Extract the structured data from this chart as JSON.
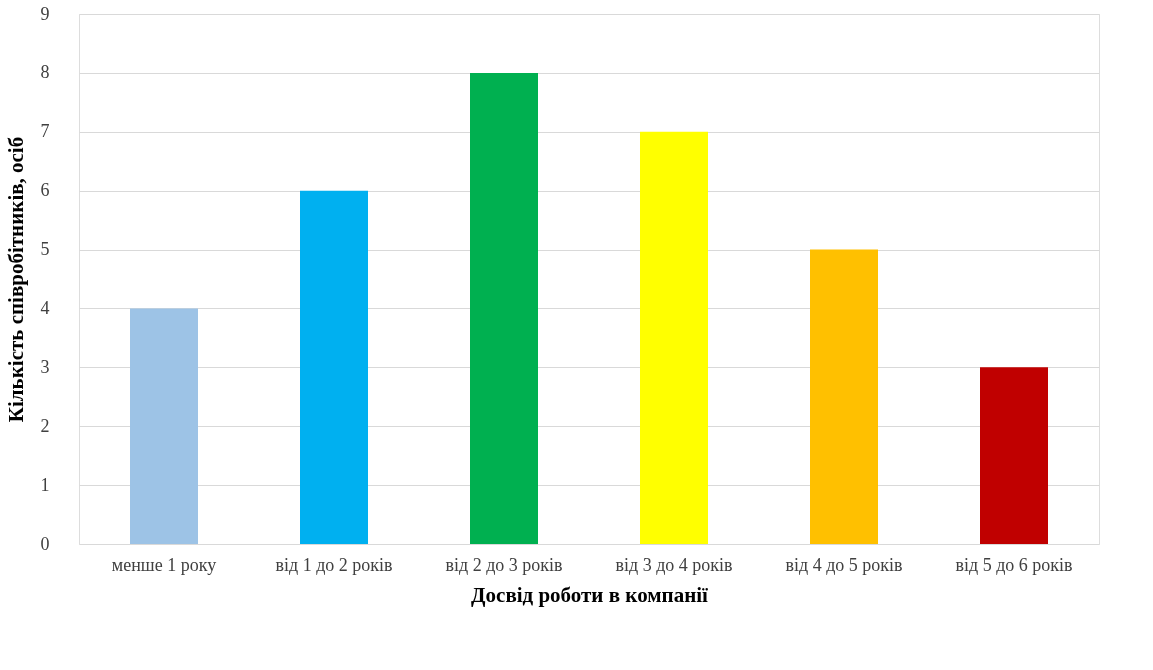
{
  "chart_data": {
    "type": "bar",
    "xlabel": "Досвід роботи в компанії",
    "ylabel": "Кількість співробітників, осіб",
    "categories": [
      "менше 1 року",
      "від 1 до 2 років",
      "від 2 до 3 років",
      "від 3 до 4 років",
      "від 4 до 5 років",
      "від 5 до 6 років"
    ],
    "values": [
      4,
      6,
      8,
      7,
      5,
      3
    ],
    "colors": [
      "#9dc3e6",
      "#00b0f0",
      "#00b050",
      "#ffff00",
      "#ffc000",
      "#c00000"
    ],
    "ylim": [
      0,
      9
    ],
    "yticks": [
      0,
      1,
      2,
      3,
      4,
      5,
      6,
      7,
      8,
      9
    ],
    "grid": "y",
    "legend": false
  }
}
